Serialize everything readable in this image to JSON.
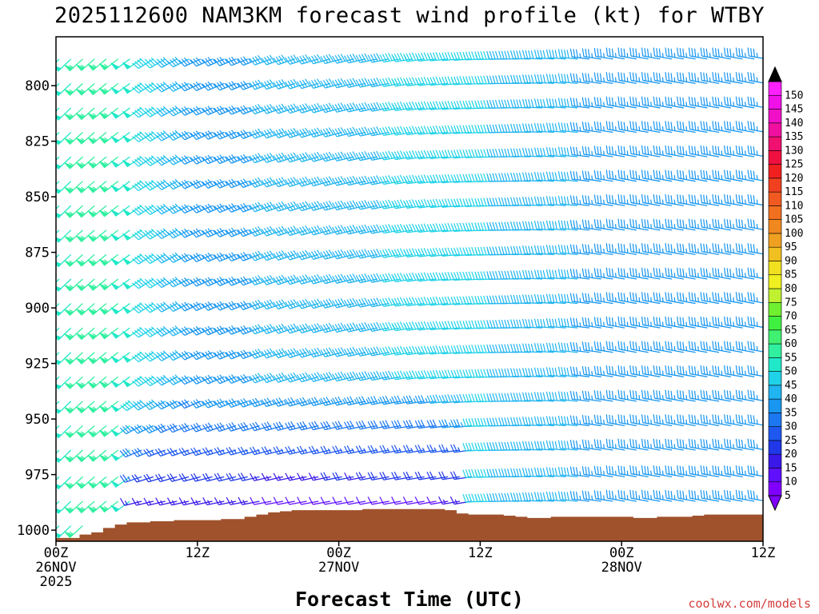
{
  "chart_data": {
    "type": "wind-barb-profile",
    "title": "2025112600 NAM3KM forecast wind profile (kt) for WTBY",
    "xlabel": "Forecast Time (UTC)",
    "ylabel": "",
    "x_ticks": [
      {
        "hour": 0,
        "lines": [
          "00Z",
          "26NOV",
          "2025"
        ]
      },
      {
        "hour": 12,
        "lines": [
          "12Z"
        ]
      },
      {
        "hour": 24,
        "lines": [
          "00Z",
          "27NOV"
        ]
      },
      {
        "hour": 36,
        "lines": [
          "12Z"
        ]
      },
      {
        "hour": 48,
        "lines": [
          "00Z",
          "28NOV"
        ]
      },
      {
        "hour": 60,
        "lines": [
          "12Z"
        ]
      }
    ],
    "x_range_hours": [
      0,
      60
    ],
    "y_ticks": [
      "800",
      "825",
      "850",
      "875",
      "900",
      "925",
      "950",
      "975",
      "1000"
    ],
    "y_range_hpa": [
      778,
      1005
    ],
    "colorbar": {
      "units": "kt",
      "labels": [
        "5",
        "10",
        "15",
        "20",
        "25",
        "30",
        "35",
        "40",
        "45",
        "50",
        "55",
        "60",
        "65",
        "70",
        "75",
        "80",
        "85",
        "90",
        "95",
        "100",
        "105",
        "110",
        "115",
        "120",
        "125",
        "130",
        "135",
        "140",
        "145",
        "150"
      ],
      "colors": [
        "#8000ff",
        "#6010ff",
        "#3a18e8",
        "#2038e8",
        "#1e58f0",
        "#1c78f0",
        "#1896f0",
        "#20b4f0",
        "#20d2e8",
        "#20e8c8",
        "#30f0a0",
        "#40f070",
        "#40f040",
        "#70f030",
        "#c0f030",
        "#f0f020",
        "#f0e020",
        "#f0c020",
        "#f0a020",
        "#f08820",
        "#f07020",
        "#f05a20",
        "#f04020",
        "#f02020",
        "#f01040",
        "#f01070",
        "#f010a0",
        "#f010c8",
        "#f010e8",
        "#ff20ff"
      ]
    },
    "terrain_hpa_by_hour": [
      1003.5,
      1003.5,
      1002,
      1001,
      999,
      997.5,
      996.5,
      996.5,
      996,
      996,
      995.5,
      995.5,
      995.5,
      995.5,
      995,
      995,
      994,
      993,
      992,
      991.5,
      991,
      991,
      991,
      991,
      991,
      991,
      990.5,
      990.5,
      990.5,
      990.5,
      990.5,
      990.5,
      990.5,
      991,
      992.5,
      993,
      993,
      993,
      993.5,
      994,
      994.5,
      994.5,
      994,
      994,
      994,
      994,
      994,
      994,
      994,
      994.5,
      994.5,
      994,
      994,
      994,
      993.5,
      993,
      993,
      993,
      993,
      993,
      993
    ],
    "barb_levels_hpa": [
      788,
      799,
      810,
      821,
      832,
      843,
      854,
      865,
      876,
      887,
      898,
      909,
      920,
      931,
      942,
      953,
      964,
      976,
      987,
      998
    ],
    "barb_samples": [
      {
        "hour": 0,
        "direction_deg": 225,
        "speed_kt": 50
      },
      {
        "hour": 4,
        "direction_deg": 230,
        "speed_kt": 55
      },
      {
        "hour": 12,
        "direction_deg": 245,
        "speed_kt": 35
      },
      {
        "hour": 24,
        "direction_deg": 255,
        "speed_kt": 40
      },
      {
        "hour": 34,
        "direction_deg": 265,
        "speed_kt": 45
      },
      {
        "hour": 48,
        "direction_deg": 280,
        "speed_kt": 35
      },
      {
        "hour": 60,
        "direction_deg": 280,
        "speed_kt": 35
      }
    ],
    "low_level_barbs": {
      "direction_deg": 260,
      "speed_kt": 10
    }
  },
  "colors": {
    "terrain": "#a0522d",
    "frame": "#000000",
    "credit": "#d43c3c"
  },
  "credit": "coolwx.com/models"
}
